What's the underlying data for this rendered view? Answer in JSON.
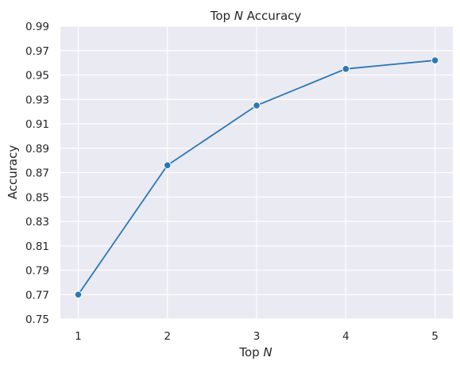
{
  "chart_data": {
    "type": "line",
    "title_prefix": "Top ",
    "title_var": "N",
    "title_suffix": " Accuracy",
    "xlabel_prefix": "Top ",
    "xlabel_var": "N",
    "ylabel": "Accuracy",
    "x": [
      1,
      2,
      3,
      4,
      5
    ],
    "x_tick_labels": [
      "1",
      "2",
      "3",
      "4",
      "5"
    ],
    "series": [
      {
        "values": [
          0.77,
          0.876,
          0.925,
          0.955,
          0.962
        ]
      }
    ],
    "ylim": [
      0.75,
      0.99
    ],
    "y_ticks": [
      0.75,
      0.77,
      0.79,
      0.81,
      0.83,
      0.85,
      0.87,
      0.89,
      0.91,
      0.93,
      0.95,
      0.97,
      0.99
    ],
    "y_tick_labels": [
      "0.75",
      "0.77",
      "0.79",
      "0.81",
      "0.83",
      "0.85",
      "0.87",
      "0.89",
      "0.91",
      "0.93",
      "0.95",
      "0.97",
      "0.99"
    ],
    "grid": true,
    "marker": "circle",
    "colors": {
      "line": "#2a78b5",
      "marker_fill": "#2a78b5",
      "marker_edge": "#ffffff",
      "plot_background": "#eaeaf2",
      "grid": "#ffffff"
    }
  }
}
